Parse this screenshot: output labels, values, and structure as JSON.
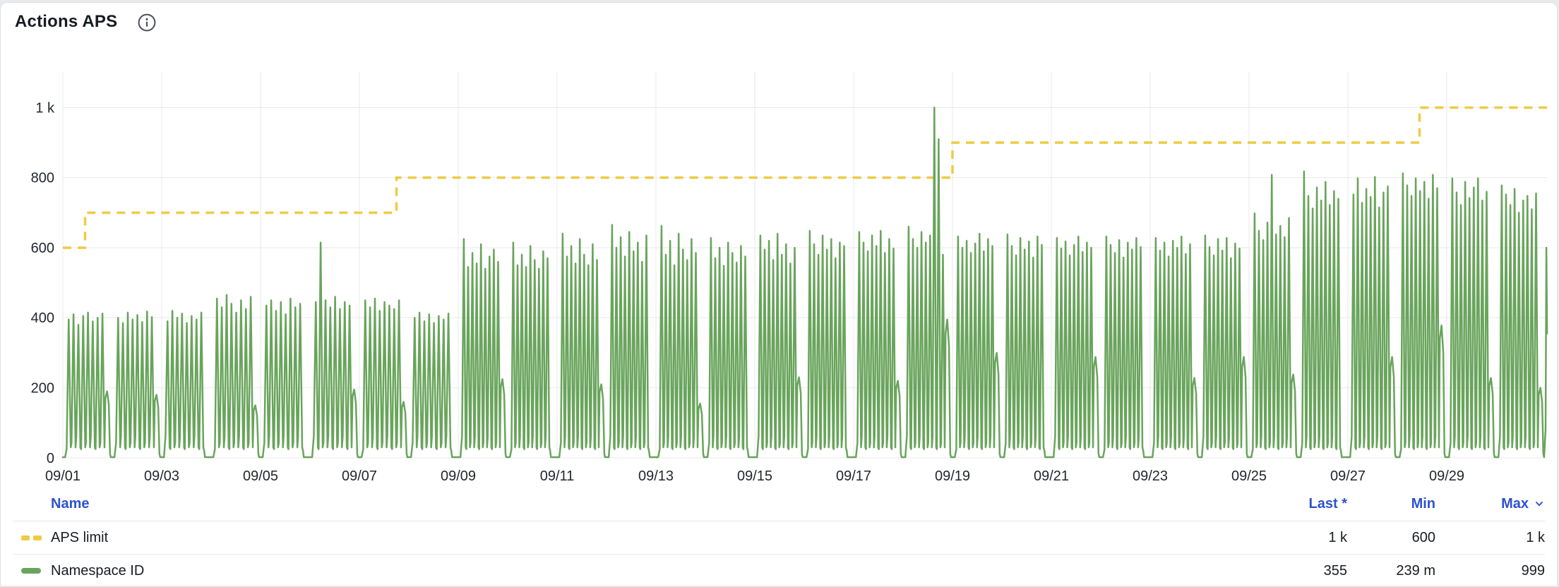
{
  "panel": {
    "title": "Actions APS"
  },
  "legend": {
    "columns": {
      "name": "Name",
      "last": "Last *",
      "min": "Min",
      "max": "Max"
    },
    "sorted_column": "max",
    "header_color": "#2d52cf",
    "rows": [
      {
        "name": "APS limit",
        "swatch": "dashed",
        "color": "#eecb45",
        "last": "1 k",
        "min": "600",
        "max": "1 k"
      },
      {
        "name": "Namespace ID",
        "swatch": "solid",
        "color": "#69a45c",
        "last": "355",
        "min": "239 m",
        "max": "999"
      }
    ]
  },
  "chart_data": {
    "type": "line",
    "title": "Actions APS",
    "grid": true,
    "legend_position": "bottom-table",
    "x_axis": {
      "tick_labels": [
        "09/01",
        "09/03",
        "09/05",
        "09/07",
        "09/09",
        "09/11",
        "09/13",
        "09/15",
        "09/17",
        "09/19",
        "09/21",
        "09/23",
        "09/25",
        "09/27",
        "09/29"
      ],
      "tick_day_positions": [
        0,
        2,
        4,
        6,
        8,
        10,
        12,
        14,
        16,
        18,
        20,
        22,
        24,
        26,
        28
      ],
      "days_total": 30.03
    },
    "y_axis": {
      "ticks": [
        {
          "v": 0,
          "label": "0"
        },
        {
          "v": 200,
          "label": "200"
        },
        {
          "v": 400,
          "label": "400"
        },
        {
          "v": 600,
          "label": "600"
        },
        {
          "v": 800,
          "label": "800"
        },
        {
          "v": 1000,
          "label": "1 k"
        }
      ],
      "ylim": [
        0,
        1108
      ]
    },
    "series": [
      {
        "name": "APS limit",
        "type": "step",
        "style": "dashed",
        "color": "#eecb45",
        "stroke_width": 3.5,
        "points_day_value": [
          [
            0,
            600
          ],
          [
            0.45,
            700
          ],
          [
            6.75,
            800
          ],
          [
            18,
            900
          ],
          [
            27.45,
            1000
          ],
          [
            30.03,
            1000
          ]
        ],
        "stats": {
          "last": "1 k",
          "min": "600",
          "max": "1 k"
        }
      },
      {
        "name": "Namespace ID",
        "type": "spiky-daily",
        "color": "#69a45c",
        "stroke_width": 2.5,
        "days": [
          {
            "date": "09/01",
            "peaks": [
              395,
              410,
              380,
              405,
              415,
              390,
              400,
              412
            ],
            "shoulder": 190
          },
          {
            "date": "09/02",
            "peaks": [
              400,
              385,
              415,
              395,
              408,
              388,
              418,
              402
            ],
            "shoulder": 180
          },
          {
            "date": "09/03",
            "peaks": [
              390,
              420,
              400,
              412,
              385,
              405,
              395,
              415
            ],
            "shoulder": 0
          },
          {
            "date": "09/04",
            "peaks": [
              455,
              430,
              465,
              440,
              415,
              450,
              425,
              460
            ],
            "shoulder": 150
          },
          {
            "date": "09/05",
            "peaks": [
              435,
              450,
              420,
              445,
              410,
              455,
              430,
              440
            ],
            "shoulder": 0
          },
          {
            "date": "09/06",
            "peaks": [
              445,
              615,
              450,
              430,
              460,
              425,
              445,
              435
            ],
            "shoulder": 195
          },
          {
            "date": "09/07",
            "peaks": [
              450,
              430,
              455,
              420,
              445,
              435,
              425,
              450
            ],
            "shoulder": 160
          },
          {
            "date": "09/08",
            "peaks": [
              400,
              415,
              390,
              410,
              385,
              405,
              395,
              412
            ],
            "shoulder": 0
          },
          {
            "date": "09/09",
            "peaks": [
              625,
              545,
              585,
              555,
              610,
              540,
              575,
              595,
              560
            ],
            "shoulder": 225
          },
          {
            "date": "09/10",
            "peaks": [
              615,
              550,
              580,
              545,
              605,
              565,
              540,
              590,
              570
            ],
            "shoulder": 0
          },
          {
            "date": "09/11",
            "peaks": [
              640,
              575,
              605,
              555,
              625,
              580,
              550,
              610,
              565
            ],
            "shoulder": 210
          },
          {
            "date": "09/12",
            "peaks": [
              665,
              600,
              630,
              575,
              645,
              590,
              615,
              560,
              635
            ],
            "shoulder": 0
          },
          {
            "date": "09/13",
            "peaks": [
              662,
              580,
              620,
              550,
              640,
              595,
              565,
              625,
              585
            ],
            "shoulder": 155
          },
          {
            "date": "09/14",
            "peaks": [
              628,
              570,
              600,
              548,
              615,
              585,
              558,
              605,
              575
            ],
            "shoulder": 0
          },
          {
            "date": "09/15",
            "peaks": [
              635,
              595,
              620,
              565,
              640,
              580,
              610,
              555,
              600
            ],
            "shoulder": 230
          },
          {
            "date": "09/16",
            "peaks": [
              648,
              610,
              580,
              635,
              595,
              625,
              570,
              615,
              605
            ],
            "shoulder": 0
          },
          {
            "date": "09/17",
            "peaks": [
              645,
              615,
              590,
              635,
              605,
              648,
              585,
              625,
              598
            ],
            "shoulder": 220
          },
          {
            "date": "09/18",
            "peaks": [
              660,
              625,
              600,
              645,
              615,
              635,
              1000,
              910,
              580
            ],
            "shoulder": 395
          },
          {
            "date": "09/19",
            "peaks": [
              632,
              600,
              620,
              585,
              612,
              640,
              590,
              625,
              605
            ],
            "shoulder": 300
          },
          {
            "date": "09/20",
            "peaks": [
              638,
              605,
              578,
              628,
              595,
              618,
              572,
              632,
              608
            ],
            "shoulder": 0
          },
          {
            "date": "09/21",
            "peaks": [
              628,
              598,
              618,
              578,
              608,
              632,
              588,
              615,
              600
            ],
            "shoulder": 288
          },
          {
            "date": "09/22",
            "peaks": [
              632,
              608,
              585,
              622,
              572,
              615,
              595,
              628,
              602
            ],
            "shoulder": 0
          },
          {
            "date": "09/23",
            "peaks": [
              628,
              592,
              615,
              575,
              620,
              600,
              632,
              582,
              610
            ],
            "shoulder": 228
          },
          {
            "date": "09/24",
            "peaks": [
              635,
              602,
              578,
              625,
              592,
              628,
              570,
              612,
              598
            ],
            "shoulder": 288
          },
          {
            "date": "09/25",
            "peaks": [
              698,
              648,
              622,
              672,
              808,
              638,
              662,
              630,
              685
            ],
            "shoulder": 238
          },
          {
            "date": "09/26",
            "peaks": [
              818,
              748,
              712,
              772,
              735,
              788,
              722,
              762,
              740
            ],
            "shoulder": 0
          },
          {
            "date": "09/27",
            "peaks": [
              752,
              798,
              728,
              768,
              745,
              802,
              715,
              758,
              775
            ],
            "shoulder": 288
          },
          {
            "date": "09/28",
            "peaks": [
              812,
              778,
              748,
              798,
              762,
              788,
              740,
              808,
              770
            ],
            "shoulder": 378
          },
          {
            "date": "09/29",
            "peaks": [
              798,
              758,
              722,
              788,
              742,
              772,
              798,
              735,
              760
            ],
            "shoulder": 228
          },
          {
            "date": "09/30",
            "peaks": [
              778,
              752,
              722,
              768,
              700,
              735,
              748,
              710,
              755
            ],
            "shoulder": 200
          }
        ],
        "end_point": {
          "day": 30.03,
          "value": 355
        },
        "stats": {
          "last": "355",
          "min": "239 m",
          "max": "999"
        }
      }
    ]
  },
  "theme": {
    "grid_color": "#e9e9eb",
    "axis_text_color": "#23272e",
    "panel_border": "#dfe0e2"
  }
}
